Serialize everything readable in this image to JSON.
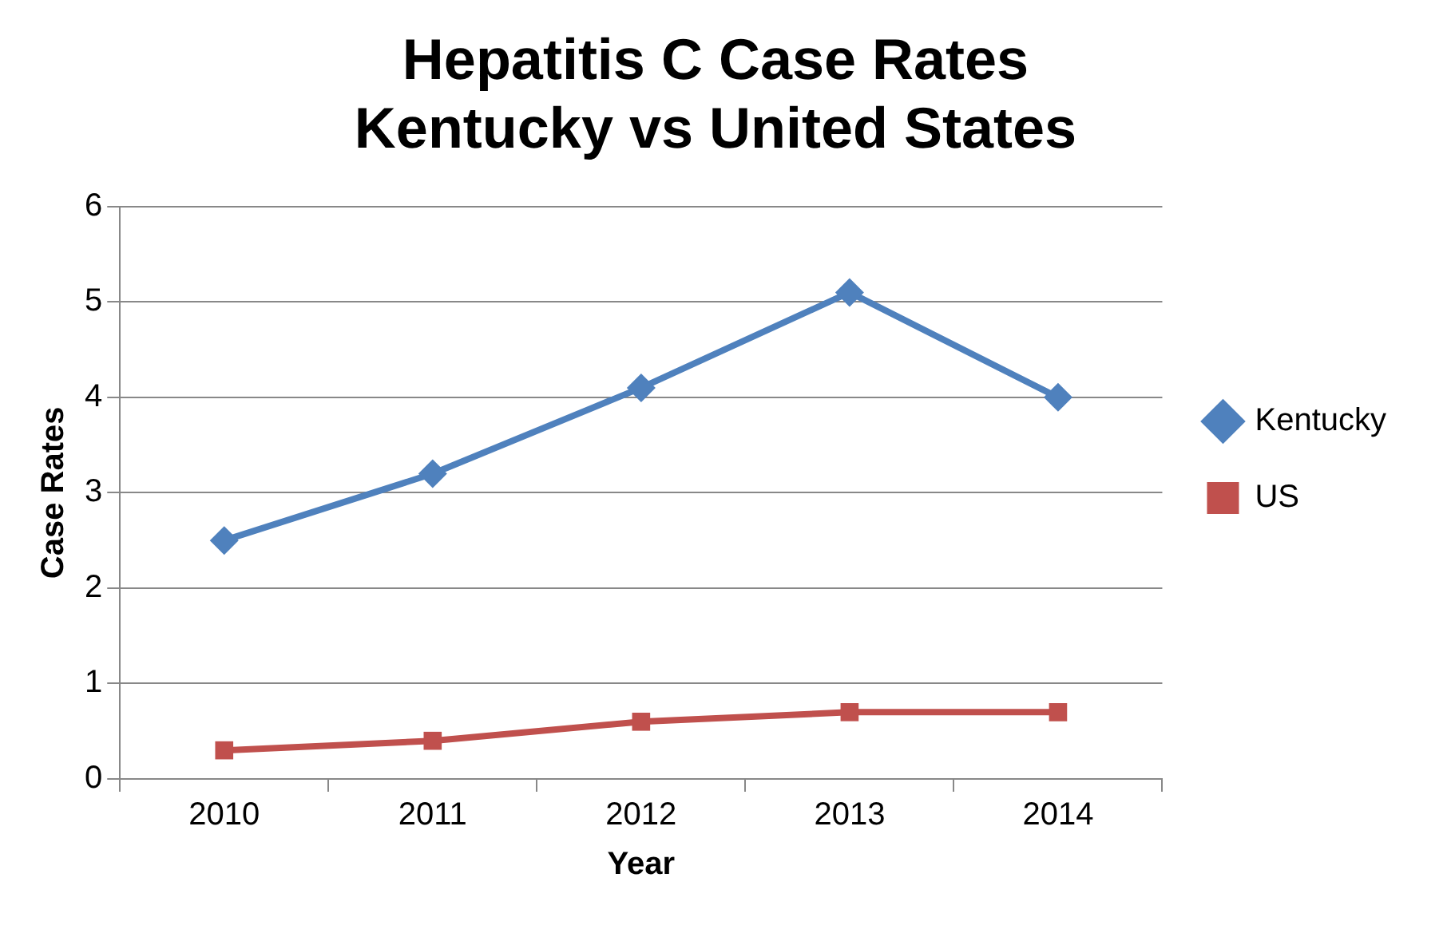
{
  "chart_data": {
    "type": "line",
    "title": "Hepatitis C Case Rates\nKentucky vs United States",
    "xlabel": "Year",
    "ylabel": "Case Rates",
    "categories": [
      "2010",
      "2011",
      "2012",
      "2013",
      "2014"
    ],
    "series": [
      {
        "name": "Kentucky",
        "color": "#4f81bd",
        "marker": "diamond",
        "values": [
          2.5,
          3.2,
          4.1,
          5.1,
          4.0
        ]
      },
      {
        "name": "US",
        "color": "#c0504d",
        "marker": "square",
        "values": [
          0.3,
          0.4,
          0.6,
          0.7,
          0.7
        ]
      }
    ],
    "ylim": [
      0,
      6
    ],
    "yticks": [
      0,
      1,
      2,
      3,
      4,
      5,
      6
    ],
    "grid": "y",
    "legend": "right",
    "line_style": "solid"
  }
}
